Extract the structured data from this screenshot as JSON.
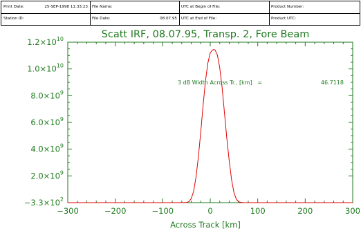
{
  "header": {
    "print_date_label": "Print Date:",
    "print_date_value": "25-SEP-1998 11:33:23",
    "station_id_label": "Station ID:",
    "file_name_label": "File Name:",
    "file_date_label": "File Date:",
    "file_date_value": "08.07.95",
    "utc_begin_label": "UTC at Begin of File:",
    "utc_end_label": "UTC at End of File:",
    "product_number_label": "Product Number:",
    "product_utc_label": "Product UTC:"
  },
  "colors": {
    "axis": "#1f7a1f",
    "curve": "#e00000"
  },
  "chart_data": {
    "type": "line",
    "title": "Scatt IRF, 08.07.95, Transp. 2, Fore Beam",
    "xlabel": "Across Track [km]",
    "ylabel": "",
    "xlim": [
      -300,
      300
    ],
    "ylim": [
      -330,
      12000000000
    ],
    "x_ticks": [
      -300,
      -200,
      -100,
      0,
      100,
      200,
      300
    ],
    "x_tick_labels": [
      "−300",
      "−200",
      "−100",
      "0",
      "100",
      "200",
      "300"
    ],
    "y_ticks": [
      {
        "value": -330,
        "base": "−3.3×10",
        "exp": "2"
      },
      {
        "value": 2000000000,
        "base": "2.0×10",
        "exp": "9"
      },
      {
        "value": 4000000000,
        "base": "4.0×10",
        "exp": "9"
      },
      {
        "value": 6000000000,
        "base": "6.0×10",
        "exp": "9"
      },
      {
        "value": 8000000000,
        "base": "8.0×10",
        "exp": "9"
      },
      {
        "value": 10000000000,
        "base": "1.0×10",
        "exp": "10"
      },
      {
        "value": 12000000000,
        "base": "1.2×10",
        "exp": "10"
      }
    ],
    "annotation_label": "3 dB Width Across Tr., [km]   =",
    "annotation_value": "46.7118",
    "series": [
      {
        "x": [
          -60,
          -50,
          -45,
          -40,
          -35,
          -30,
          -25,
          -20,
          -15,
          -10,
          -5,
          0,
          5,
          8,
          10,
          15,
          20,
          25,
          30,
          35,
          40,
          45,
          50,
          55,
          60,
          70
        ],
        "y": [
          0,
          10000000,
          80000000,
          300000000,
          850000000,
          1900000000,
          3400000000,
          5300000000,
          7300000000,
          9100000000,
          10450000000,
          11200000000,
          11420000000,
          11450000000,
          11420000000,
          11050000000,
          10100000000,
          8600000000,
          6700000000,
          4800000000,
          3100000000,
          1700000000,
          750000000,
          250000000,
          50000000,
          0
        ]
      }
    ]
  }
}
